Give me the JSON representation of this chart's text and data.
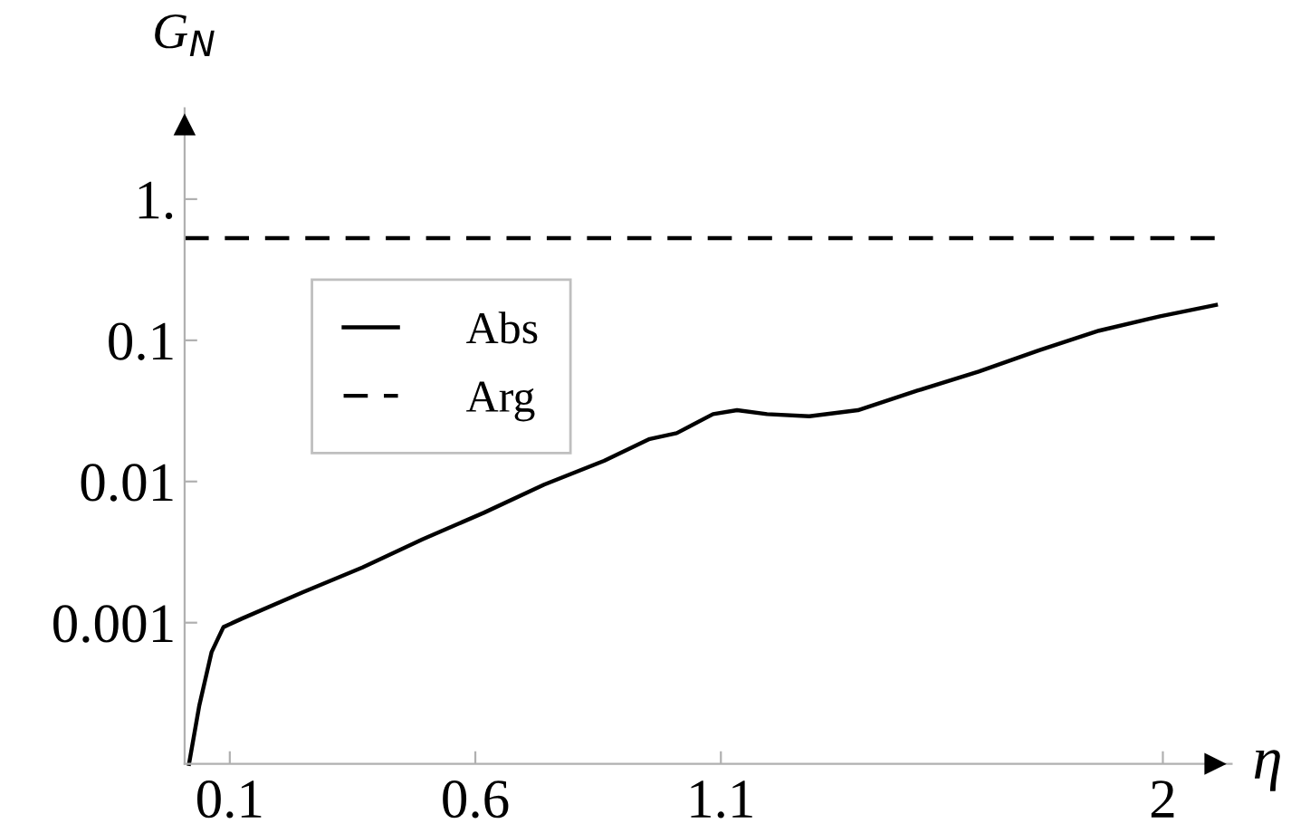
{
  "chart_data": {
    "type": "line",
    "xlabel": "η",
    "ylabel": "G$_{N}$",
    "series": [
      {
        "name": "Abs",
        "color": "#000000",
        "line_style": "solid",
        "x": [
          0.017,
          0.038,
          0.063,
          0.087,
          0.125,
          0.248,
          0.37,
          0.493,
          0.617,
          0.74,
          0.862,
          0.955,
          1.01,
          1.084,
          1.133,
          1.194,
          1.28,
          1.379,
          1.5,
          1.625,
          1.748,
          1.87,
          1.994,
          2.108
        ],
        "values": [
          0.0001,
          0.00026,
          0.00062,
          0.00093,
          0.00107,
          0.00164,
          0.00246,
          0.0039,
          0.006,
          0.0095,
          0.014,
          0.02,
          0.022,
          0.03,
          0.032,
          0.03,
          0.029,
          0.032,
          0.044,
          0.06,
          0.085,
          0.117,
          0.148,
          0.178
        ]
      },
      {
        "name": "Arg",
        "color": "#000000",
        "line_style": "dashed",
        "x": [
          0.008,
          2.108
        ],
        "values": [
          0.53,
          0.53
        ]
      }
    ],
    "xlim": [
      0.008,
      2.14
    ],
    "ylim": [
      0.0001,
      4.4
    ],
    "log": "y",
    "xticks": [
      0.1,
      0.6,
      1.1,
      2
    ],
    "yticks": [
      {
        "value": 1,
        "label": "1."
      },
      0.1,
      0.01,
      0.001
    ],
    "grid": false,
    "legend": "top left"
  }
}
